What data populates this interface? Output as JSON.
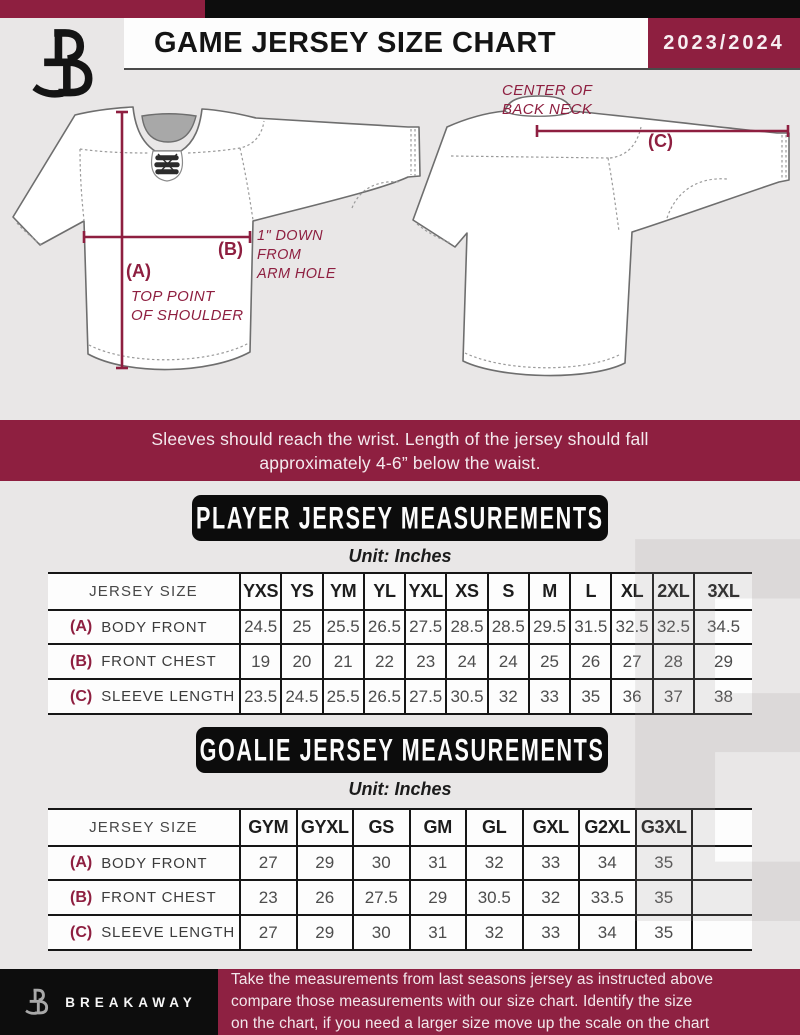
{
  "header": {
    "title": "GAME JERSEY SIZE CHART",
    "season": "2023/2024"
  },
  "diagram": {
    "center_back_neck": [
      "CENTER OF",
      "BACK NECK"
    ],
    "a_label": "(A)",
    "a_note": [
      "TOP POINT",
      "OF SHOULDER"
    ],
    "b_label": "(B)",
    "b_note": [
      "1\" DOWN",
      "FROM",
      "ARM HOLE"
    ],
    "c_label": "(C)"
  },
  "banner": {
    "line1": "Sleeves should reach the wrist. Length of the jersey should fall",
    "line2": "approximately 4-6” below the waist."
  },
  "player_table": {
    "heading": "PLAYER JERSEY MEASUREMENTS",
    "unit": "Unit: Inches",
    "size_label": "JERSEY SIZE",
    "columns": [
      "YXS",
      "YS",
      "YM",
      "YL",
      "YXL",
      "XS",
      "S",
      "M",
      "L",
      "XL",
      "2XL",
      "3XL"
    ],
    "rows": [
      {
        "key": "(A)",
        "label": "BODY FRONT",
        "values": [
          "24.5",
          "25",
          "25.5",
          "26.5",
          "27.5",
          "28.5",
          "28.5",
          "29.5",
          "31.5",
          "32.5",
          "32.5",
          "34.5"
        ]
      },
      {
        "key": "(B)",
        "label": "FRONT CHEST",
        "values": [
          "19",
          "20",
          "21",
          "22",
          "23",
          "24",
          "24",
          "25",
          "26",
          "27",
          "28",
          "29"
        ]
      },
      {
        "key": "(C)",
        "label": "SLEEVE LENGTH",
        "values": [
          "23.5",
          "24.5",
          "25.5",
          "26.5",
          "27.5",
          "30.5",
          "32",
          "33",
          "35",
          "36",
          "37",
          "38"
        ]
      }
    ]
  },
  "goalie_table": {
    "heading": "GOALIE JERSEY MEASUREMENTS",
    "unit": "Unit: Inches",
    "size_label": "JERSEY SIZE",
    "columns": [
      "GYM",
      "GYXL",
      "GS",
      "GM",
      "GL",
      "GXL",
      "G2XL",
      "G3XL",
      ""
    ],
    "rows": [
      {
        "key": "(A)",
        "label": "BODY FRONT",
        "values": [
          "27",
          "29",
          "30",
          "31",
          "32",
          "33",
          "34",
          "35",
          ""
        ]
      },
      {
        "key": "(B)",
        "label": "FRONT CHEST",
        "values": [
          "23",
          "26",
          "27.5",
          "29",
          "30.5",
          "32",
          "33.5",
          "35",
          ""
        ]
      },
      {
        "key": "(C)",
        "label": "SLEEVE LENGTH",
        "values": [
          "27",
          "29",
          "30",
          "31",
          "32",
          "33",
          "34",
          "35",
          ""
        ]
      }
    ]
  },
  "footer": {
    "brand": "BREAKAWAY",
    "line1": "Take the measurements from last seasons jersey as instructed above",
    "line2": "compare those measurements  with our size chart. Identify the size",
    "line3": "on the chart, if you need a larger size move up the scale on the chart"
  },
  "colors": {
    "maroon": "#8e1f40",
    "black": "#0d0d0d",
    "background": "#e9e7e7"
  },
  "watermark_letter": "B"
}
